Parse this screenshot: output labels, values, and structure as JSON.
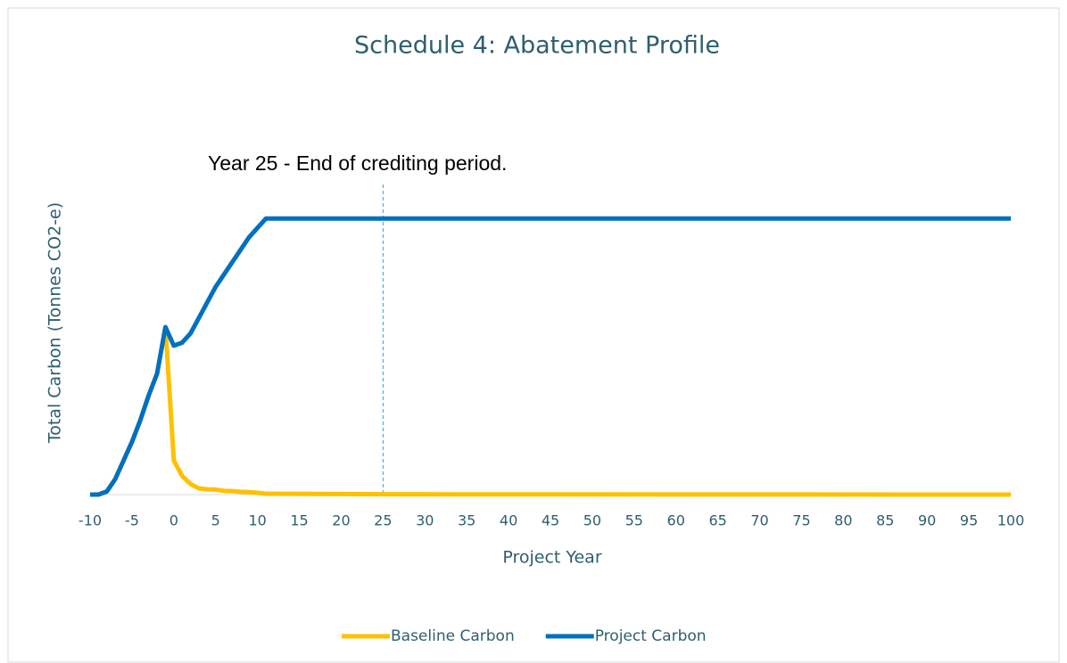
{
  "chart_data": {
    "type": "line",
    "title": "Schedule 4: Abatement Profile",
    "xlabel": "Project Year",
    "ylabel": "Total Carbon (Tonnes CO2-e)",
    "x": [
      -10,
      -9,
      -8,
      -7,
      -6,
      -5,
      -4,
      -3,
      -2,
      -1,
      0,
      1,
      2,
      3,
      4,
      5,
      6,
      7,
      8,
      9,
      10,
      11,
      25,
      100
    ],
    "series": [
      {
        "name": "Baseline Carbon",
        "color": "#ffc000",
        "values": [
          0,
          0,
          1,
          5,
          11,
          17,
          24,
          32,
          39,
          54,
          11,
          6,
          3.4,
          2,
          1.7,
          1.6,
          1.2,
          1.1,
          0.9,
          0.8,
          0.6,
          0.3,
          0.1,
          0
        ]
      },
      {
        "name": "Project Carbon",
        "color": "#0070c0",
        "values": [
          0,
          0,
          1,
          5,
          11,
          17,
          24,
          32,
          39,
          54,
          48,
          49,
          52,
          57,
          62,
          67,
          71,
          75,
          79,
          83,
          86,
          89,
          89,
          89
        ]
      }
    ],
    "xlim": [
      -10,
      100
    ],
    "xticks": [
      -10,
      -5,
      0,
      5,
      10,
      15,
      20,
      25,
      30,
      35,
      40,
      45,
      50,
      55,
      60,
      65,
      70,
      75,
      80,
      85,
      90,
      95,
      100
    ],
    "ylim": [
      0,
      100
    ],
    "annotation": {
      "text": "Year 25 - End of crediting period.",
      "x": 25
    },
    "legend": "bottom"
  }
}
